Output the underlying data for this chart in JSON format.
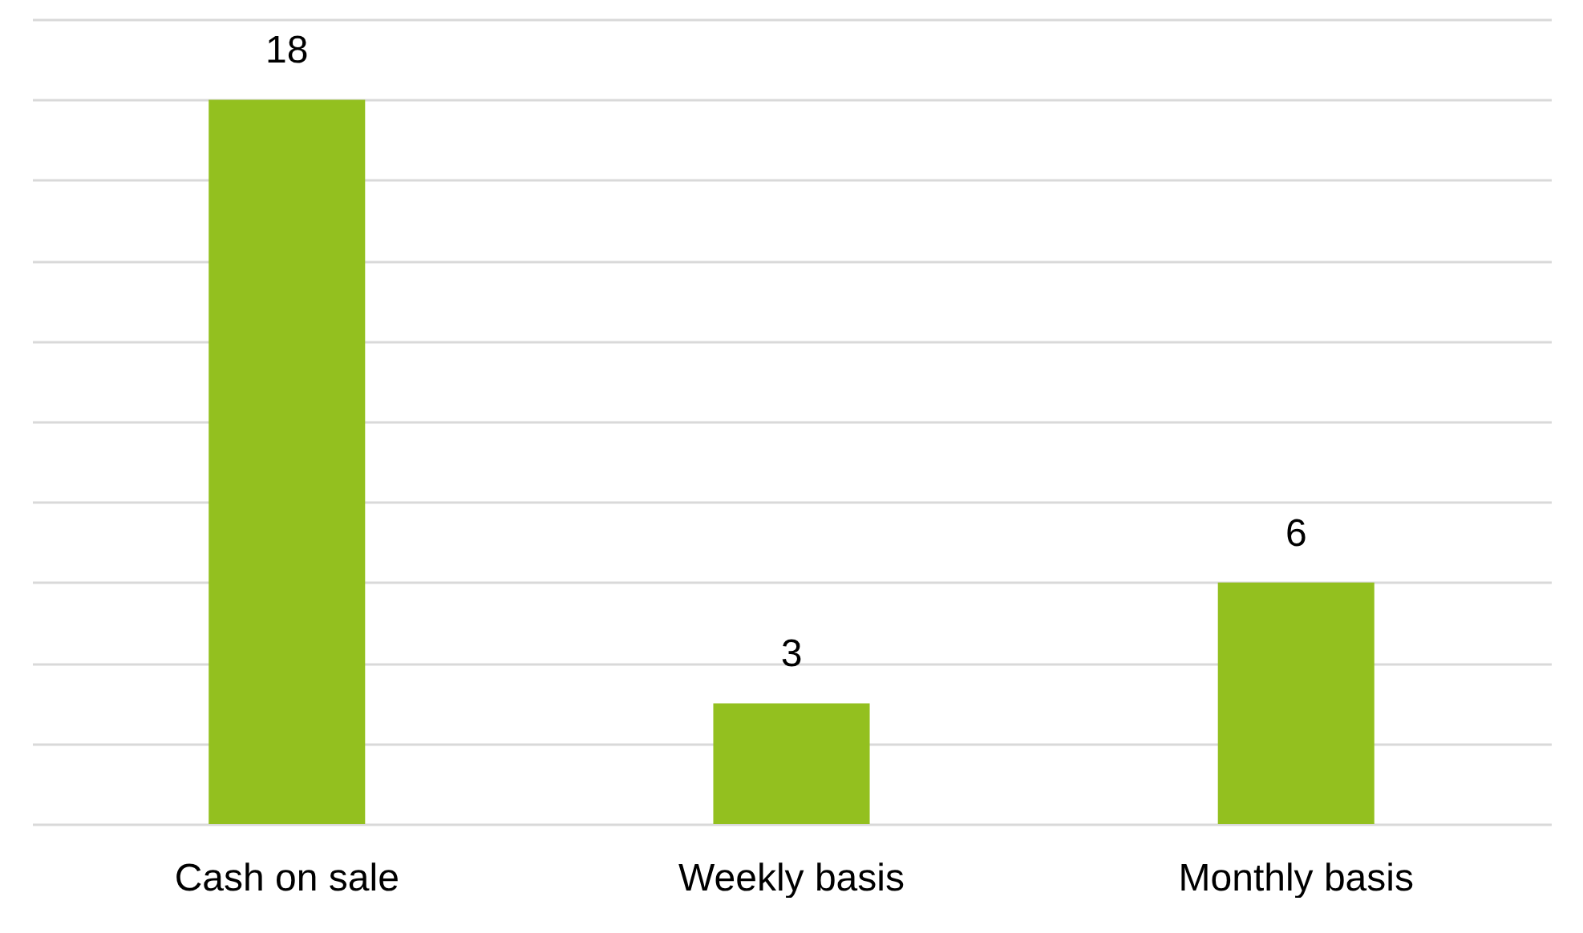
{
  "chart_data": {
    "type": "bar",
    "categories": [
      "Cash on sale",
      "Weekly basis",
      "Monthly basis"
    ],
    "values": [
      18,
      3,
      6
    ],
    "color": "#93c01f",
    "ylim": [
      0,
      20
    ],
    "yticks": [
      {
        "value": 0,
        "label": null
      },
      {
        "value": 2,
        "label": null
      },
      {
        "value": 4,
        "label": null
      },
      {
        "value": 6,
        "label": null
      },
      {
        "value": 8,
        "label": null
      },
      {
        "value": 10,
        "label": null
      },
      {
        "value": 12,
        "label": null
      },
      {
        "value": 14,
        "label": null
      },
      {
        "value": 16,
        "label": null
      },
      {
        "value": 18,
        "label": null
      },
      {
        "value": 20,
        "label": null
      }
    ],
    "grid": "y",
    "data_labels": true,
    "tick_labels": "x"
  }
}
